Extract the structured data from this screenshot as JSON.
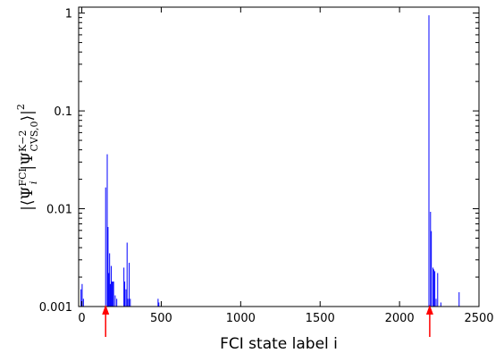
{
  "chart_data": {
    "type": "bar",
    "xlabel": "FCI state label i",
    "ylabel": {
      "bracket_left": "|⟨Ψ",
      "sub_i": "i",
      "sup_fci": "FCI",
      "mid_bar": "|Ψ",
      "sup_k2": "K−2",
      "sub_cvs": "CVS,0",
      "bracket_right": "⟩|",
      "power": "2"
    },
    "xlim": [
      -20,
      2500
    ],
    "ylim": [
      0.001,
      1.15
    ],
    "yscale": "log",
    "x_ticks": [
      0,
      500,
      1000,
      1500,
      2000,
      2500
    ],
    "x_tick_labels": [
      "0",
      "500",
      "1000",
      "1500",
      "2000",
      "2500"
    ],
    "y_ticks": [
      0.001,
      0.01,
      0.1,
      1
    ],
    "y_tick_labels": [
      "0.001",
      "0.01",
      "0.1",
      "1"
    ],
    "series_color": "#0000ff",
    "arrow_color": "#ff0000",
    "arrows_x": [
      150,
      2190
    ],
    "x": [
      -5,
      2,
      10,
      150,
      160,
      165,
      170,
      175,
      180,
      185,
      190,
      195,
      200,
      210,
      220,
      265,
      270,
      278,
      285,
      290,
      298,
      305,
      480,
      485,
      2185,
      2195,
      2200,
      2210,
      2215,
      2222,
      2230,
      2240,
      2260,
      2375
    ],
    "y": [
      0.0015,
      0.0017,
      0.0012,
      0.0165,
      0.036,
      0.0065,
      0.0022,
      0.0035,
      0.0017,
      0.0026,
      0.0018,
      0.0018,
      0.0018,
      0.0013,
      0.0012,
      0.0025,
      0.0018,
      0.0015,
      0.0045,
      0.0012,
      0.0028,
      0.0012,
      0.0012,
      0.0011,
      0.95,
      0.0093,
      0.0059,
      0.0025,
      0.0024,
      0.0023,
      0.0012,
      0.0022,
      0.0011,
      0.0014
    ]
  }
}
